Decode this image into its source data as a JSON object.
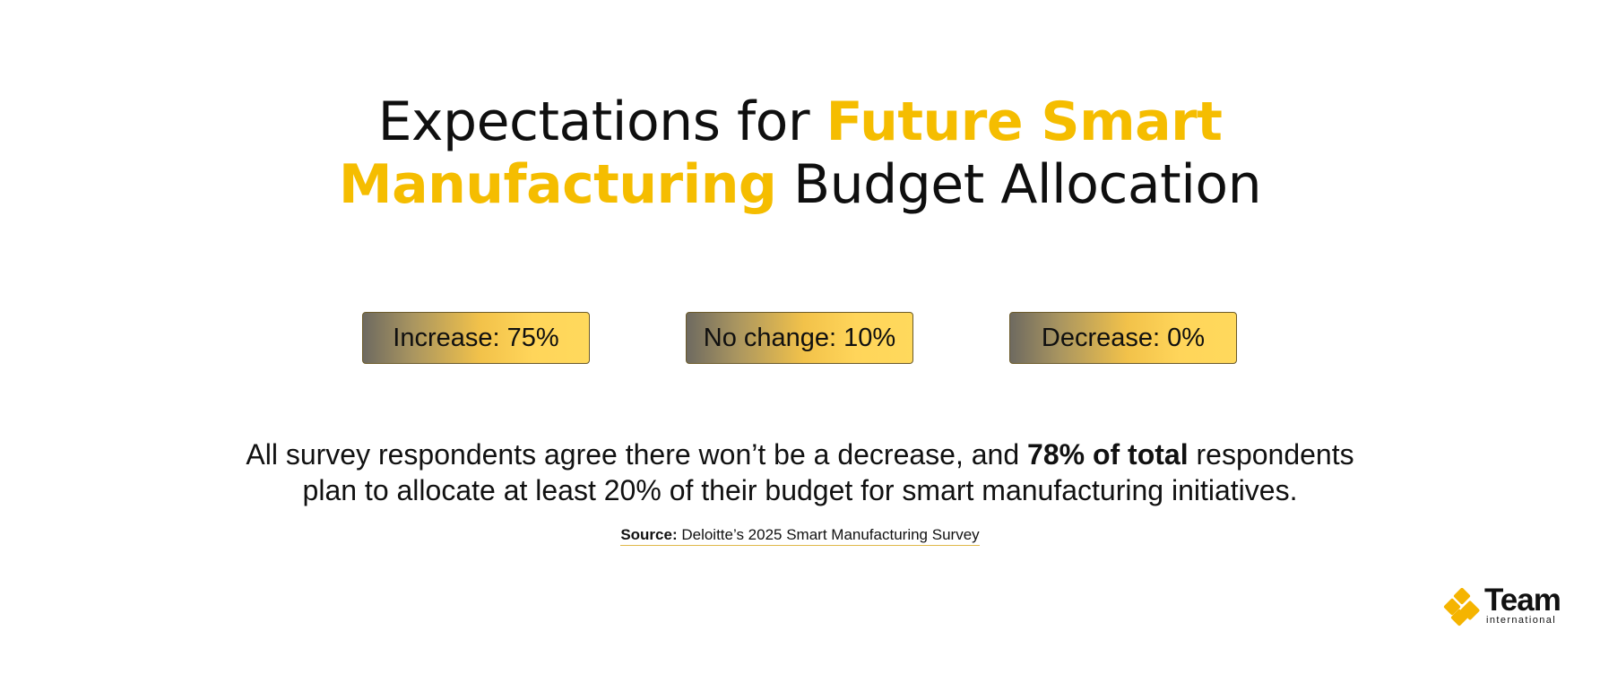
{
  "title": {
    "part1": "Expectations for ",
    "highlight1": "Future Smart",
    "highlight2": "Manufacturing",
    "part2": " Budget Allocation"
  },
  "badges": [
    {
      "label": "Increase: 75%"
    },
    {
      "label": "No change: 10%"
    },
    {
      "label": "Decrease: 0%"
    }
  ],
  "summary": {
    "line1_pre": "All survey respondents agree there won’t be a decrease, and ",
    "line1_bold": "78% of total",
    "line1_post": " respondents",
    "line2": "plan to allocate at least 20% of their budget for smart manufacturing initiatives."
  },
  "source": {
    "label": "Source:",
    "text": " Deloitte’s 2025 Smart Manufacturing Survey"
  },
  "logo": {
    "word": "Team",
    "sub": "international",
    "icon": "team-logo-mark-icon"
  },
  "colors": {
    "accent": "#f5bd00",
    "badge_gradient_start": "#6e6a60",
    "badge_gradient_end": "#ffd95c",
    "text": "#0f0f0f"
  }
}
